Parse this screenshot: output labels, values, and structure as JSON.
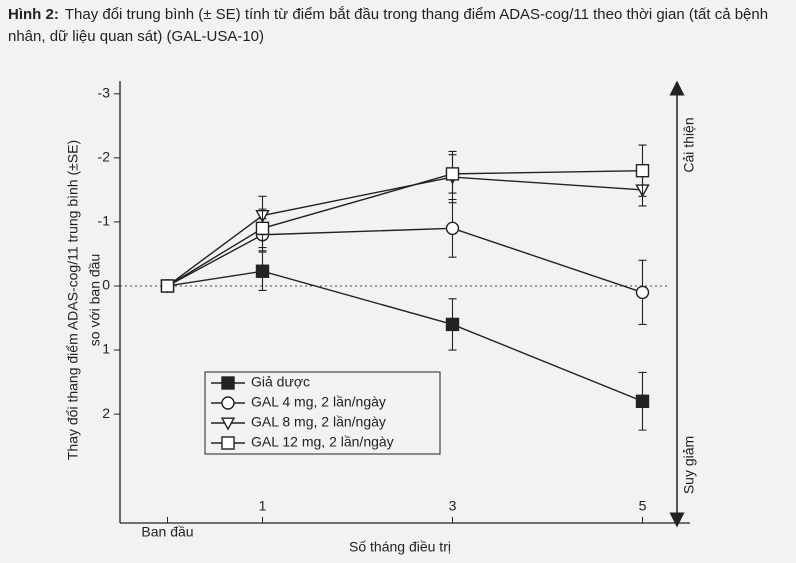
{
  "chart_data": {
    "type": "line",
    "figure_label": "Hình 2:",
    "title": "Thay đổi trung bình (± SE) tính từ điểm bắt đầu trong thang điểm ADAS-cog/11 theo thời gian (tất cả bệnh nhân, dữ liệu quan sát) (GAL-USA-10)",
    "y_label": [
      "Thay đổi thang điểm ADAS-cog/11 trung bình (±SE)",
      "so với ban đầu"
    ],
    "x_label": "Số tháng điều trị",
    "annotations": [
      "Cải thiện",
      "Suy giảm"
    ],
    "x": [
      0,
      1,
      3,
      5
    ],
    "xlim": [
      -0.5,
      5.5
    ],
    "xticks": [
      {
        "value": 0,
        "label": "Ban đầu"
      },
      1,
      3,
      5
    ],
    "ylim": [
      -3.2,
      3.7
    ],
    "yticks": [
      -3,
      -2,
      -1,
      0,
      1,
      2
    ],
    "invert_y": true,
    "zero_line": true,
    "legend": "lower center",
    "series": [
      {
        "name": "Giả dược",
        "color": "#222222",
        "marker": "square-filled",
        "values": [
          0,
          -0.23,
          0.6,
          1.8
        ],
        "errors": [
          0,
          0.3,
          0.4,
          0.45
        ]
      },
      {
        "name": "GAL 4 mg, 2 lần/ngày",
        "color": "#222222",
        "marker": "circle-open",
        "values": [
          0,
          -0.8,
          -0.9,
          0.1
        ],
        "errors": [
          0,
          0.25,
          0.45,
          0.5
        ]
      },
      {
        "name": "GAL 8 mg, 2 lần/ngày",
        "color": "#222222",
        "marker": "triangle-down-open",
        "values": [
          0,
          -1.1,
          -1.7,
          -1.5
        ],
        "errors": [
          0,
          0.3,
          0.4,
          0.25
        ]
      },
      {
        "name": "GAL 12 mg, 2 lần/ngày",
        "color": "#222222",
        "marker": "square-open",
        "values": [
          0,
          -0.9,
          -1.75,
          -1.8
        ],
        "errors": [
          0,
          0.3,
          0.3,
          0.4
        ]
      }
    ]
  }
}
